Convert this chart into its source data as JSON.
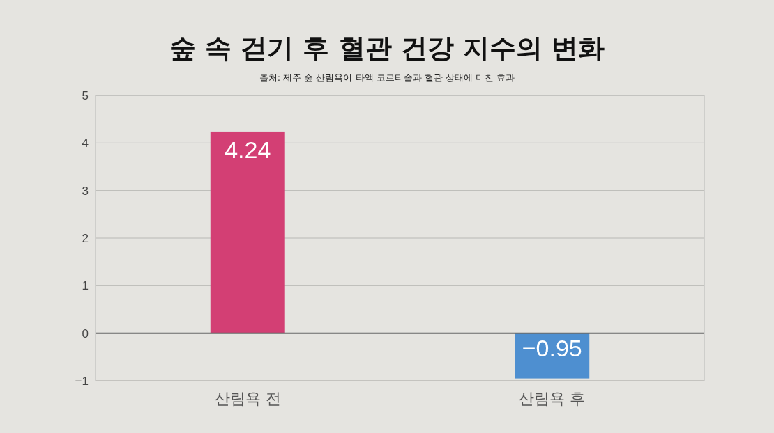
{
  "chart_data": {
    "type": "bar",
    "title": "숲 속 걷기 후 혈관 건강 지수의 변화",
    "subtitle": "출처: 제주 숲 산림욕이 타액 코르티솔과 혈관 상태에 미친 효과",
    "categories": [
      "산림욕 전",
      "산림욕 후"
    ],
    "values": [
      4.24,
      -0.95
    ],
    "colors": [
      "#d33f74",
      "#4e8fd0"
    ],
    "ylim": [
      -1,
      5
    ],
    "yticks": [
      {
        "value": -1,
        "label": "−1"
      },
      0,
      1,
      2,
      3,
      4,
      5
    ],
    "grid": true,
    "data_labels": true
  }
}
